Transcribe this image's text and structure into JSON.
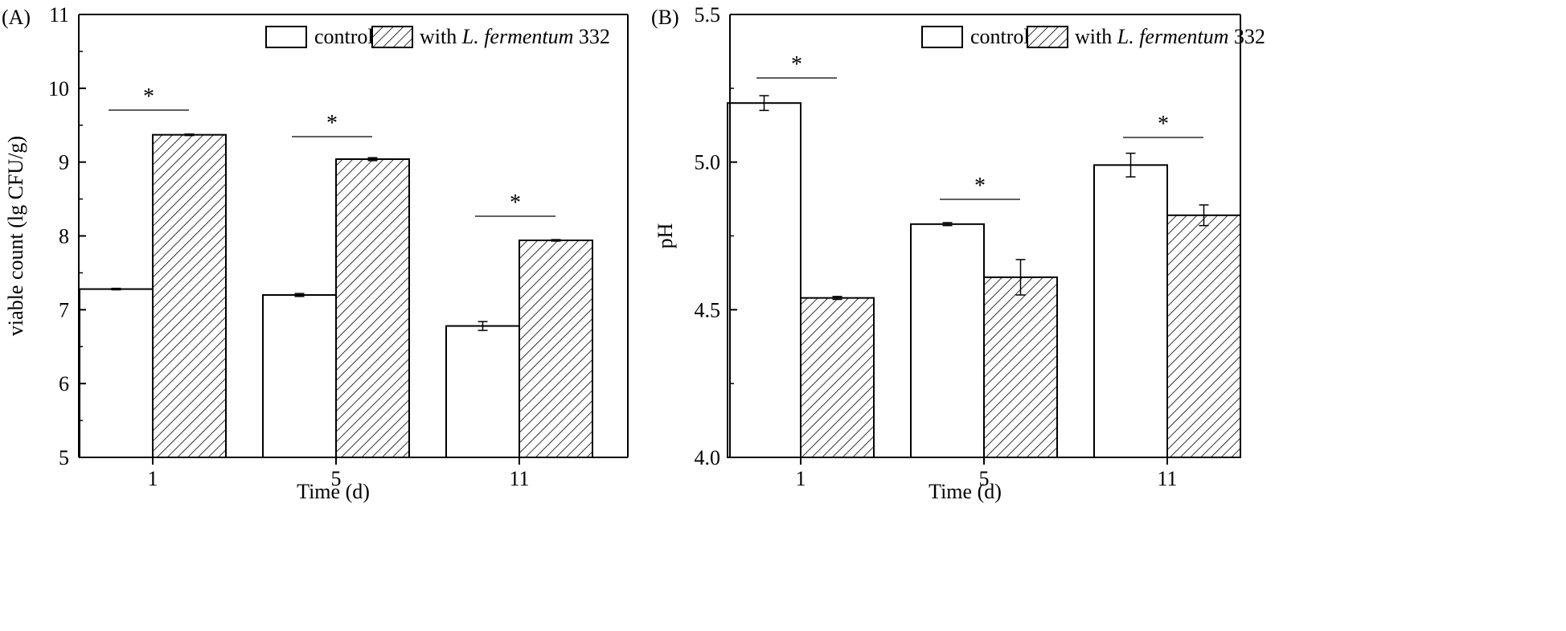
{
  "chart_data": [
    {
      "panel_label": "(A)",
      "type": "bar",
      "xlabel": "Time (d)",
      "ylabel": "viable count (lg CFU/g)",
      "ylim": [
        5,
        11
      ],
      "yticks": [
        "5",
        "6",
        "7",
        "8",
        "9",
        "10",
        "11"
      ],
      "categories": [
        "1",
        "5",
        "11"
      ],
      "series": [
        {
          "name": "control",
          "values": [
            7.28,
            7.2,
            6.78
          ],
          "errors": [
            0.01,
            0.02,
            0.06
          ]
        },
        {
          "name": "with L. fermentum 332",
          "values": [
            9.37,
            9.04,
            7.94
          ],
          "errors": [
            0.01,
            0.02,
            0.01
          ]
        }
      ],
      "significance": [
        "*",
        "*",
        "*"
      ],
      "legend": {
        "placement": "top-right",
        "items": [
          "control",
          "with L. fermentum 332"
        ]
      },
      "grid": false
    },
    {
      "panel_label": "(B)",
      "type": "bar",
      "xlabel": "Time (d)",
      "ylabel": "pH",
      "ylim": [
        4.0,
        5.5
      ],
      "yticks": [
        "4.0",
        "4.5",
        "5.0",
        "5.5"
      ],
      "categories": [
        "1",
        "5",
        "11"
      ],
      "series": [
        {
          "name": "control",
          "values": [
            5.2,
            4.79,
            4.99
          ],
          "errors": [
            0.025,
            0.005,
            0.04
          ]
        },
        {
          "name": "with L. fermentum 332",
          "values": [
            4.54,
            4.61,
            4.82
          ],
          "errors": [
            0.005,
            0.06,
            0.035
          ]
        }
      ],
      "significance": [
        "*",
        "*",
        "*"
      ],
      "legend": {
        "placement": "top-right",
        "items": [
          "control",
          "with L. fermentum 332"
        ]
      },
      "grid": false
    }
  ],
  "legend_text": {
    "control": "control",
    "with_prefix": "with ",
    "species": "L. fermentum",
    "strain": " 332"
  }
}
